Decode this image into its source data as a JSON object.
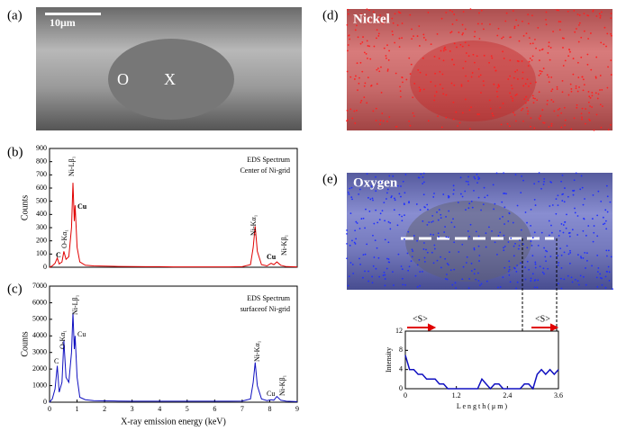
{
  "figure": {
    "panel_labels": [
      "(a)",
      "(b)",
      "(c)",
      "(d)",
      "(e)"
    ],
    "scale_bar": "10μm",
    "markers": [
      "O",
      "X"
    ],
    "map_labels": [
      "Nickel",
      "Oxygen"
    ]
  },
  "chart_data": [
    {
      "type": "line",
      "color": "#e00000",
      "ylabel": "Counts",
      "x": [
        0,
        0.1,
        0.2,
        0.28,
        0.35,
        0.45,
        0.52,
        0.6,
        0.7,
        0.8,
        0.85,
        0.9,
        0.93,
        1.0,
        1.1,
        1.3,
        1.6,
        2,
        2.5,
        3,
        3.5,
        4,
        4.5,
        5,
        5.5,
        6,
        6.5,
        7,
        7.3,
        7.4,
        7.47,
        7.55,
        7.7,
        7.9,
        8.05,
        8.15,
        8.26,
        8.4,
        8.6,
        9
      ],
      "values": [
        0,
        10,
        30,
        70,
        25,
        40,
        120,
        60,
        80,
        300,
        640,
        350,
        470,
        150,
        40,
        15,
        10,
        8,
        6,
        5,
        4,
        4,
        3,
        3,
        3,
        3,
        3,
        4,
        20,
        150,
        310,
        120,
        20,
        10,
        30,
        20,
        40,
        15,
        5,
        3
      ],
      "xlim": [
        0,
        9
      ],
      "ylim": [
        0,
        900
      ],
      "yticks": [
        0,
        100,
        200,
        300,
        400,
        500,
        600,
        700,
        800,
        900
      ],
      "annotations": [
        "EDS Spectrum",
        "Center of Ni-grid",
        "C",
        "O-Kα₁",
        "Ni-Lβ₁",
        "Cu",
        "Ni-Kα₁",
        "Cu",
        "Ni-Kβ₁"
      ]
    },
    {
      "type": "line",
      "color": "#1010c0",
      "ylabel": "Counts",
      "xlabel": "X-ray emission energy (keV)",
      "x": [
        0,
        0.1,
        0.2,
        0.28,
        0.35,
        0.45,
        0.52,
        0.6,
        0.7,
        0.8,
        0.85,
        0.9,
        0.93,
        1.0,
        1.1,
        1.3,
        1.6,
        2,
        2.5,
        3,
        3.5,
        4,
        4.5,
        5,
        5.5,
        6,
        6.5,
        7,
        7.3,
        7.4,
        7.47,
        7.55,
        7.7,
        7.9,
        8.05,
        8.15,
        8.26,
        8.4,
        8.6,
        9
      ],
      "values": [
        0,
        200,
        800,
        2200,
        600,
        1200,
        3700,
        1500,
        1200,
        3000,
        5400,
        3200,
        4000,
        1500,
        300,
        150,
        100,
        80,
        70,
        60,
        60,
        60,
        60,
        60,
        60,
        60,
        60,
        70,
        200,
        1200,
        2400,
        1000,
        200,
        100,
        150,
        120,
        350,
        120,
        60,
        30
      ],
      "xlim": [
        0,
        9
      ],
      "ylim": [
        0,
        7000
      ],
      "xticks": [
        0,
        1,
        2,
        3,
        4,
        5,
        6,
        7,
        8,
        9
      ],
      "yticks": [
        0,
        1000,
        2000,
        3000,
        4000,
        5000,
        6000,
        7000
      ],
      "annotations": [
        "EDS Spectrum",
        "surfaceof Ni-grid",
        "C",
        "O-Kα₁",
        "Ni-Lβ₁",
        "Cu",
        "Ni-Kα₁",
        "Cu",
        "Ni-Kβ₁"
      ]
    },
    {
      "type": "line",
      "color": "#1010c0",
      "ylabel": "Intensity",
      "xlabel": "L e n g t h  ( μ m )",
      "x": [
        0,
        0.1,
        0.2,
        0.3,
        0.4,
        0.5,
        0.6,
        0.7,
        0.8,
        0.9,
        1.0,
        1.1,
        1.2,
        1.3,
        1.4,
        1.5,
        1.6,
        1.7,
        1.8,
        1.9,
        2.0,
        2.1,
        2.2,
        2.3,
        2.4,
        2.5,
        2.6,
        2.7,
        2.8,
        2.9,
        3.0,
        3.1,
        3.2,
        3.3,
        3.4,
        3.5,
        3.6
      ],
      "values": [
        7,
        4,
        4,
        3,
        3,
        2,
        2,
        2,
        1,
        1,
        0,
        0,
        0,
        0,
        0,
        0,
        0,
        0,
        2,
        1,
        0,
        1,
        1,
        0,
        0,
        0,
        0,
        0,
        1,
        1,
        0,
        3,
        4,
        3,
        4,
        3,
        4
      ],
      "xlim": [
        0,
        3.6
      ],
      "ylim": [
        0,
        12
      ],
      "xticks": [
        0,
        1.2,
        2.4,
        3.6
      ],
      "yticks": [
        0,
        4,
        8,
        12
      ],
      "annotations": [
        "<S>",
        "<S>"
      ]
    }
  ]
}
